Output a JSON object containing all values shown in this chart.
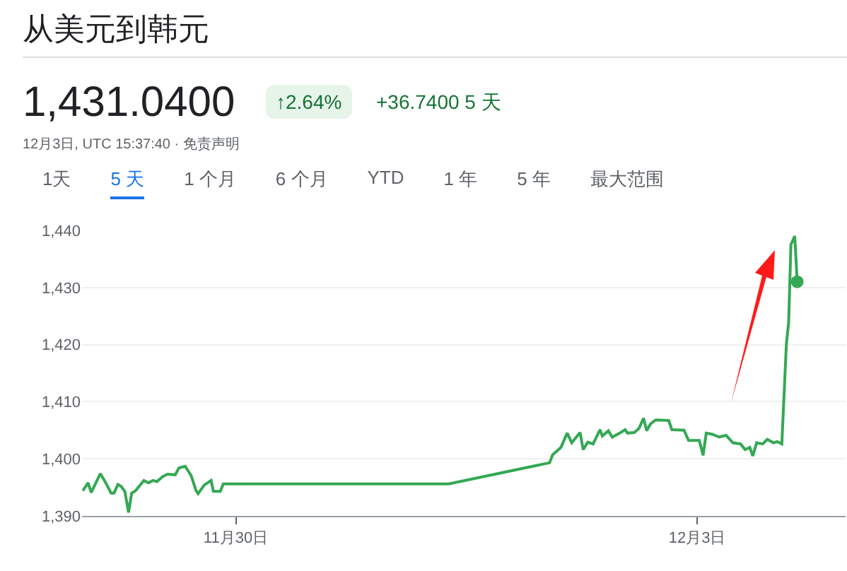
{
  "chart_data": {
    "type": "line",
    "title": "从美元到韩元",
    "annotations": [
      "1,431.0400",
      "↑2.64%",
      "+36.7400 5 天",
      "12月3日, UTC 15:37:40 · 免责声明",
      "1天",
      "5 天",
      "1 个月",
      "6 个月",
      "YTD",
      "1 年",
      "5 年",
      "最大范围"
    ],
    "x": [
      "--11-29T00:07",
      "--11-29T00:57",
      "--11-29T01:26",
      "--11-29T02:52",
      "--11-29T03:42",
      "--11-29T04:32",
      "--11-29T05:00",
      "--11-29T05:36",
      "--11-29T06:05",
      "--11-29T06:41",
      "--11-29T07:16",
      "--11-29T07:45",
      "--11-29T08:21",
      "--11-29T09:39",
      "--11-29T10:22",
      "--11-29T11:05",
      "--11-29T11:41",
      "--11-29T12:38",
      "--11-29T13:21",
      "--11-29T14:33",
      "--11-29T15:08",
      "--11-29T16:06",
      "--11-29T17:03",
      "--11-29T17:46",
      "--11-29T18:07",
      "--11-29T19:05",
      "--11-29T20:09",
      "--11-29T20:30",
      "--11-29T21:35",
      "--11-29T22:03",
      "--12-01T09:14",
      "--12-02T00:58",
      "--12-02T01:27",
      "--12-02T02:45",
      "--12-02T03:43",
      "--12-02T04:26",
      "--12-02T05:44",
      "--12-02T06:13",
      "--12-02T06:56",
      "--12-02T07:46",
      "--12-02T08:50",
      "--12-02T09:12",
      "--12-02T10:09",
      "--12-02T10:45",
      "--12-02T11:56",
      "--12-02T12:46",
      "--12-02T13:08",
      "--12-02T14:12",
      "--12-02T14:55",
      "--12-02T15:38",
      "--12-02T16:07",
      "--12-02T16:43",
      "--12-02T17:32",
      "--12-02T19:34",
      "--12-02T20:03",
      "--12-02T21:57",
      "--12-02T22:40",
      "--12-03T00:20",
      "--12-03T00:56",
      "--12-03T01:25",
      "--12-03T02:22",
      "--12-03T03:26",
      "--12-03T04:31",
      "--12-03T05:35",
      "--12-03T06:47",
      "--12-03T07:29",
      "--12-03T08:13",
      "--12-03T08:41",
      "--12-03T09:17",
      "--12-03T10:14",
      "--12-03T10:57",
      "--12-03T11:54",
      "--12-03T12:30",
      "--12-03T13:13",
      "--12-03T13:56",
      "--12-03T14:17",
      "--12-03T14:38",
      "--12-03T15:14",
      "--12-03T15:37"
    ],
    "series": [
      {
        "color": "#34a853",
        "marker": "none",
        "values": [
          1394.4,
          1395.8,
          1394.1,
          1397.4,
          1395.8,
          1394.0,
          1394.0,
          1395.5,
          1395.2,
          1394.3,
          1390.6,
          1394.0,
          1394.4,
          1396.2,
          1395.8,
          1396.2,
          1396.0,
          1396.9,
          1397.3,
          1397.2,
          1398.4,
          1398.7,
          1397.0,
          1394.5,
          1393.9,
          1395.4,
          1396.2,
          1394.3,
          1394.3,
          1395.6,
          1395.6,
          1399.3,
          1400.7,
          1402.0,
          1404.5,
          1402.8,
          1404.6,
          1401.6,
          1402.9,
          1402.6,
          1405.1,
          1404.0,
          1404.9,
          1403.8,
          1404.5,
          1405.1,
          1404.5,
          1404.6,
          1405.3,
          1407.1,
          1404.9,
          1406.1,
          1406.8,
          1406.7,
          1405.1,
          1405.0,
          1403.2,
          1403.2,
          1400.6,
          1404.5,
          1404.3,
          1403.8,
          1404.1,
          1402.8,
          1402.6,
          1401.6,
          1402.0,
          1400.5,
          1402.8,
          1402.6,
          1403.4,
          1402.8,
          1403.0,
          1402.6,
          1420.2,
          1423.9,
          1437.5,
          1439.0,
          1431.0
        ]
      },
      {
        "type": "scatter",
        "color": "#34a853",
        "marker": "circle",
        "x": [
          "--12-03T15:37"
        ],
        "values": [
          1431.0
        ]
      }
    ],
    "xlim": [
      "--11-29",
      "--12-03T23:10"
    ],
    "xticks": [
      {
        "value": "--11-30",
        "label": "11月30日"
      },
      {
        "value": "--12-03",
        "label": "12月3日"
      }
    ],
    "ylim": [
      1390,
      1440
    ],
    "yticks": [
      {
        "value": 1390,
        "label": "1,390"
      },
      {
        "value": 1400,
        "label": "1,400"
      },
      {
        "value": 1410,
        "label": "1,410"
      },
      {
        "value": 1420,
        "label": "1,420"
      },
      {
        "value": 1430,
        "label": "1,430"
      },
      {
        "value": 1440,
        "label": "1,440"
      }
    ],
    "grid": "y"
  }
}
